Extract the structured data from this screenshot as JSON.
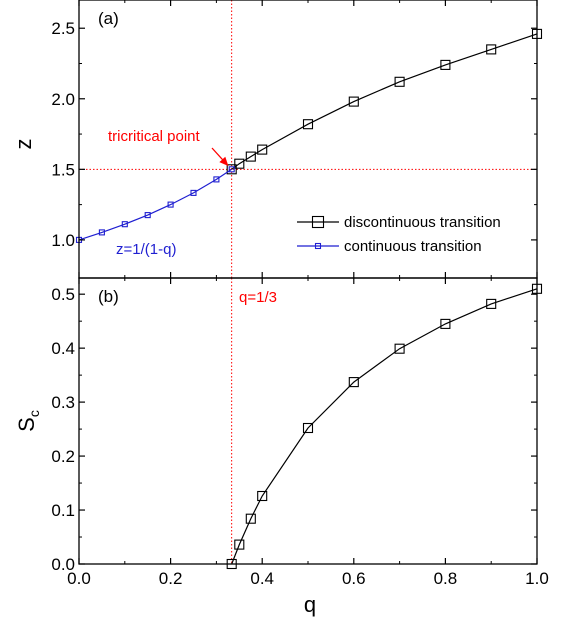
{
  "chart_data": [
    {
      "type": "line",
      "panel_label": "(a)",
      "xlabel": "",
      "ylabel": "z",
      "xlim": [
        0.0,
        1.0
      ],
      "ylim": [
        0.73,
        2.7
      ],
      "yticks": [
        1.0,
        1.5,
        2.0,
        2.5
      ],
      "ytick_labels": [
        "1.0",
        "1.5",
        "2.0",
        "2.5"
      ],
      "legend_position": "lower-right",
      "series": [
        {
          "name": "discontinuous transition",
          "color": "#000000",
          "marker": "open-square",
          "x": [
            0.3333,
            0.35,
            0.375,
            0.4,
            0.5,
            0.6,
            0.7,
            0.8,
            0.9,
            1.0
          ],
          "y": [
            1.5,
            1.54,
            1.59,
            1.64,
            1.82,
            1.98,
            2.12,
            2.24,
            2.35,
            2.46
          ]
        },
        {
          "name": "continuous transition",
          "color": "#1f1fd1",
          "marker": "open-square-small",
          "x": [
            0.0,
            0.05,
            0.1,
            0.15,
            0.2,
            0.25,
            0.3,
            0.3333
          ],
          "y": [
            1.0,
            1.053,
            1.111,
            1.176,
            1.25,
            1.333,
            1.429,
            1.5
          ]
        }
      ],
      "reference_lines": {
        "vertical_x": 0.3333,
        "horizontal_y": 1.5,
        "color": "#ff0000",
        "style": "dotted"
      },
      "annotations": [
        {
          "text": "tricritical point",
          "color": "#ff0000",
          "arrow_to": [
            0.3333,
            1.5
          ]
        },
        {
          "text": "z=1/(1-q)",
          "color": "#1f1fd1"
        }
      ]
    },
    {
      "type": "line",
      "panel_label": "(b)",
      "xlabel": "q",
      "ylabel": "S",
      "ylabel_subscript": "c",
      "xlim": [
        0.0,
        1.0
      ],
      "ylim": [
        0.0,
        0.53
      ],
      "xticks": [
        0.0,
        0.2,
        0.4,
        0.6,
        0.8,
        1.0
      ],
      "xtick_labels": [
        "0.0",
        "0.2",
        "0.4",
        "0.6",
        "0.8",
        "1.0"
      ],
      "yticks": [
        0.0,
        0.1,
        0.2,
        0.3,
        0.4,
        0.5
      ],
      "ytick_labels": [
        "0.0",
        "0.1",
        "0.2",
        "0.3",
        "0.4",
        "0.5"
      ],
      "series": [
        {
          "name": "discontinuous transition",
          "color": "#000000",
          "marker": "open-square",
          "x": [
            0.3333,
            0.35,
            0.375,
            0.4,
            0.5,
            0.6,
            0.7,
            0.8,
            0.9,
            1.0
          ],
          "y": [
            0.0,
            0.036,
            0.084,
            0.126,
            0.252,
            0.337,
            0.399,
            0.445,
            0.482,
            0.51
          ]
        }
      ],
      "reference_lines": {
        "vertical_x": 0.3333,
        "color": "#ff0000",
        "style": "dotted"
      },
      "annotations": [
        {
          "text": "q=1/3",
          "color": "#ff0000"
        }
      ]
    }
  ]
}
